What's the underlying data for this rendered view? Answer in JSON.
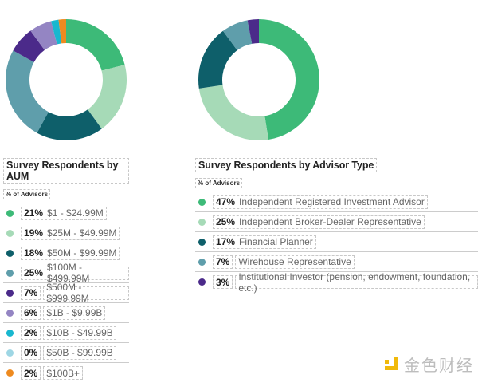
{
  "chart_data": [
    {
      "type": "pie",
      "variant": "donut",
      "title": "Survey Respondents by AUM",
      "subtitle": "% of Advisors",
      "unit": "%",
      "categories": [
        "$1 - $24.99M",
        "$25M - $49.99M",
        "$50M - $99.99M",
        "$100M - $499.99M",
        "$500M - $999.99M",
        "$1B - $9.99B",
        "$10B - $49.99B",
        "$50B - $99.99B",
        "$100B+"
      ],
      "values": [
        21,
        19,
        18,
        25,
        7,
        6,
        2,
        0,
        2
      ],
      "labels": [
        "21%",
        "19%",
        "18%",
        "25%",
        "7%",
        "6%",
        "2%",
        "0%",
        "2%"
      ],
      "colors": [
        "#3dba78",
        "#a6dab7",
        "#0e5f6a",
        "#5f9eab",
        "#4b2a8a",
        "#9485c3",
        "#19b7cf",
        "#9ed6e4",
        "#ee8a1f"
      ],
      "legend": "below"
    },
    {
      "type": "pie",
      "variant": "donut",
      "title": "Survey Respondents by Advisor Type",
      "subtitle": "% of Advisors",
      "unit": "%",
      "categories": [
        "Independent Registered Investment Advisor",
        "Independent Broker-Dealer Representative",
        "Financial Planner",
        "Wirehouse Representative",
        "Institutional Investor (pension, endowment, foundation, etc.)"
      ],
      "values": [
        47,
        25,
        17,
        7,
        3
      ],
      "labels": [
        "47%",
        "25%",
        "17%",
        "7%",
        "3%"
      ],
      "colors": [
        "#3dba78",
        "#a6dab7",
        "#0e5f6a",
        "#5f9eab",
        "#4b2a8a"
      ],
      "legend": "below"
    }
  ],
  "watermark": {
    "text": "金色财经",
    "logo_color": "#f0b90b"
  }
}
